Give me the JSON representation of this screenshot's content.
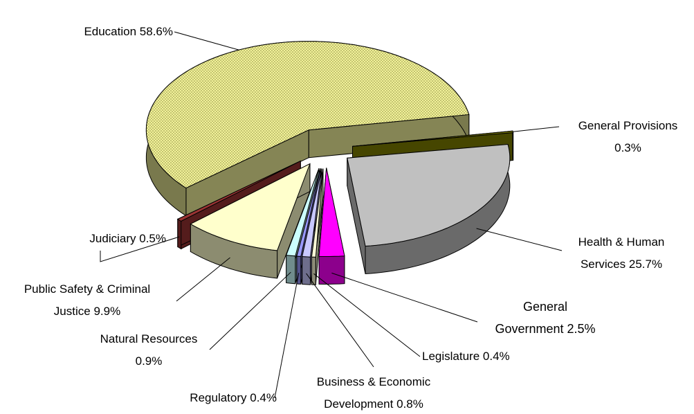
{
  "chart_data": {
    "type": "pie3d",
    "categories": [
      "Education",
      "General Provisions",
      "Health & Human Services",
      "General Government",
      "Legislature",
      "Business & Economic Development",
      "Regulatory",
      "Natural Resources",
      "Public Safety & Criminal Justice",
      "Judiciary"
    ],
    "values": [
      58.6,
      0.3,
      25.7,
      2.5,
      0.4,
      0.8,
      0.4,
      0.9,
      9.9,
      0.5
    ],
    "value_labels": [
      "58.6%",
      "0.3%",
      "25.7%",
      "2.5%",
      "0.4%",
      "0.8%",
      "0.4%",
      "0.9%",
      "9.9%",
      "0.5%"
    ],
    "colors": [
      "#f2f29a",
      "#808000",
      "#c0c0c0",
      "#ff00ff",
      "#ffffd8",
      "#c8c8ff",
      "#9999ff",
      "#ccffff",
      "#ffffcc",
      "#993333"
    ]
  }
}
